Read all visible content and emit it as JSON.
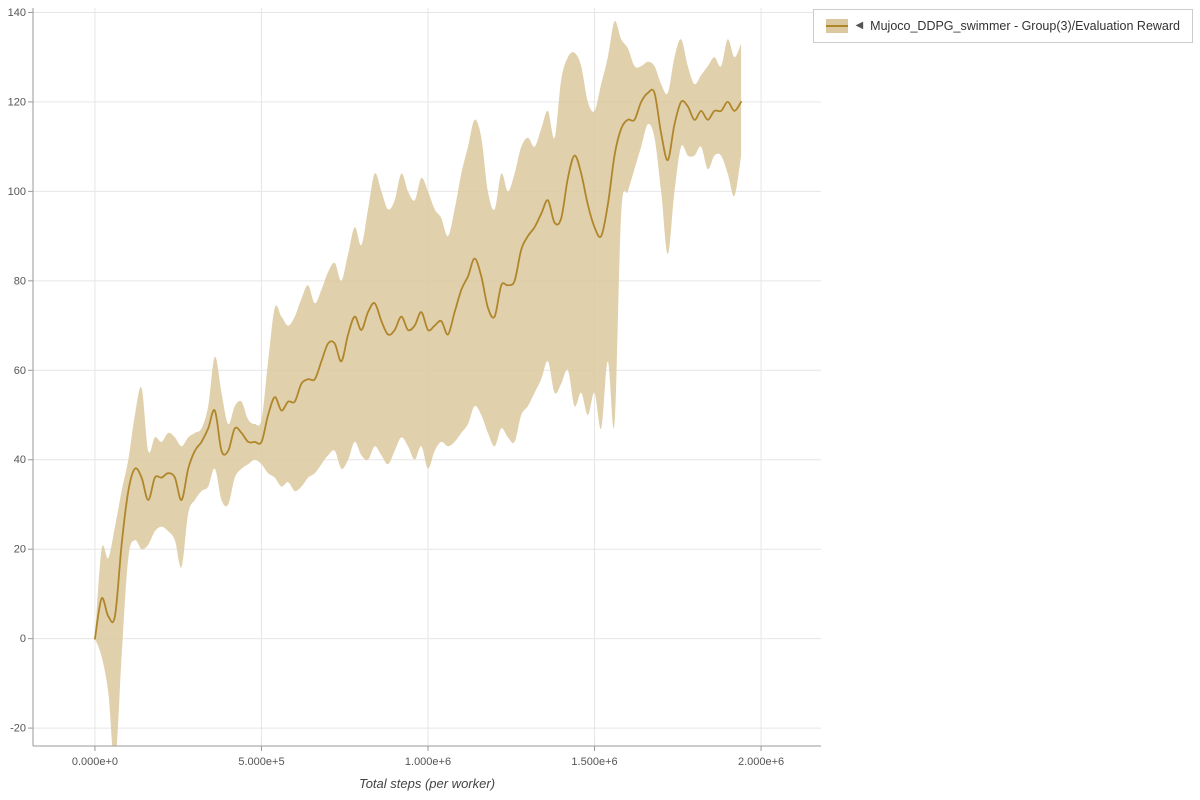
{
  "page": {
    "background": "#ffffff"
  },
  "legend": {
    "marker": "◀",
    "label": "Mujoco_DDPG_swimmer - Group(3)/Evaluation Reward"
  },
  "chart_data": {
    "type": "line",
    "title": "",
    "xlabel": "Total steps (per worker)",
    "ylabel": "",
    "xlim": [
      -186000,
      2180000
    ],
    "ylim": [
      -24,
      141
    ],
    "grid": true,
    "legend_position": "top-right",
    "x_ticks": {
      "values": [
        0,
        500000,
        1000000,
        1500000,
        2000000
      ],
      "labels": [
        "0.000e+0",
        "5.000e+5",
        "1.000e+6",
        "1.500e+6",
        "2.000e+6"
      ]
    },
    "y_ticks": {
      "values": [
        -20,
        0,
        20,
        40,
        60,
        80,
        100,
        120,
        140
      ],
      "labels": [
        "-20",
        "0",
        "20",
        "40",
        "60",
        "80",
        "100",
        "120",
        "140"
      ]
    },
    "colors": {
      "line": "#b0862b",
      "band": "#dcc89e",
      "grid": "#e6e6e6",
      "axis": "#999999",
      "tick_text": "#555555"
    },
    "series": [
      {
        "name": "Mujoco_DDPG_swimmer - Group(3)/Evaluation Reward",
        "color": "#b0862b",
        "band_color": "#dcc89e",
        "band_opacity": 0.85,
        "x_start": 0,
        "x_step": 20000,
        "mean": [
          0,
          9,
          5,
          5,
          21,
          33,
          38,
          36,
          31,
          36,
          36,
          37,
          36,
          31,
          38,
          42,
          44,
          47,
          51,
          42,
          42,
          47,
          46,
          44,
          44,
          44,
          50,
          54,
          51,
          53,
          53,
          57,
          58,
          58,
          62,
          66,
          66,
          62,
          68,
          72,
          69,
          73,
          75,
          71,
          68,
          69,
          72,
          69,
          70,
          73,
          69,
          70,
          71,
          68,
          73,
          78,
          81,
          85,
          81,
          74,
          72,
          79,
          79,
          80,
          87,
          90,
          92,
          95,
          98,
          93,
          94,
          103,
          108,
          104,
          97,
          92,
          90,
          97,
          108,
          114,
          116,
          116,
          120,
          122,
          122,
          113,
          107,
          115,
          120,
          119,
          116,
          118,
          116,
          118,
          118,
          120,
          118,
          120
        ],
        "lower": [
          0,
          -4,
          -12,
          -28,
          -4,
          18,
          22,
          20,
          21,
          24,
          25,
          24,
          22,
          16,
          28,
          31,
          33,
          34,
          38,
          31,
          30,
          36,
          38,
          39,
          40,
          39,
          37,
          36,
          34,
          35,
          33,
          34,
          36,
          37,
          39,
          41,
          42,
          38,
          40,
          44,
          41,
          40,
          43,
          41,
          39,
          42,
          45,
          43,
          40,
          43,
          38,
          42,
          44,
          43,
          44,
          46,
          48,
          52,
          50,
          46,
          43,
          47,
          45,
          44,
          50,
          52,
          55,
          58,
          62,
          55,
          57,
          60,
          52,
          55,
          50,
          55,
          47,
          62,
          48,
          95,
          100,
          105,
          110,
          115,
          112,
          100,
          86,
          100,
          110,
          108,
          108,
          110,
          105,
          108,
          108,
          104,
          99,
          108
        ],
        "upper": [
          0,
          20,
          18,
          25,
          33,
          40,
          50,
          56,
          42,
          45,
          44,
          46,
          45,
          43,
          45,
          46,
          47,
          52,
          63,
          55,
          48,
          52,
          53,
          49,
          48,
          49,
          62,
          74,
          72,
          70,
          72,
          76,
          79,
          75,
          78,
          82,
          84,
          80,
          86,
          92,
          88,
          96,
          104,
          100,
          96,
          98,
          104,
          100,
          98,
          103,
          100,
          96,
          94,
          90,
          96,
          104,
          110,
          116,
          112,
          100,
          96,
          104,
          100,
          104,
          110,
          112,
          110,
          114,
          118,
          112,
          125,
          130,
          131,
          128,
          120,
          118,
          124,
          130,
          138,
          134,
          132,
          128,
          128,
          129,
          128,
          124,
          122,
          130,
          134,
          128,
          124,
          126,
          128,
          130,
          128,
          134,
          130,
          133
        ]
      }
    ]
  }
}
